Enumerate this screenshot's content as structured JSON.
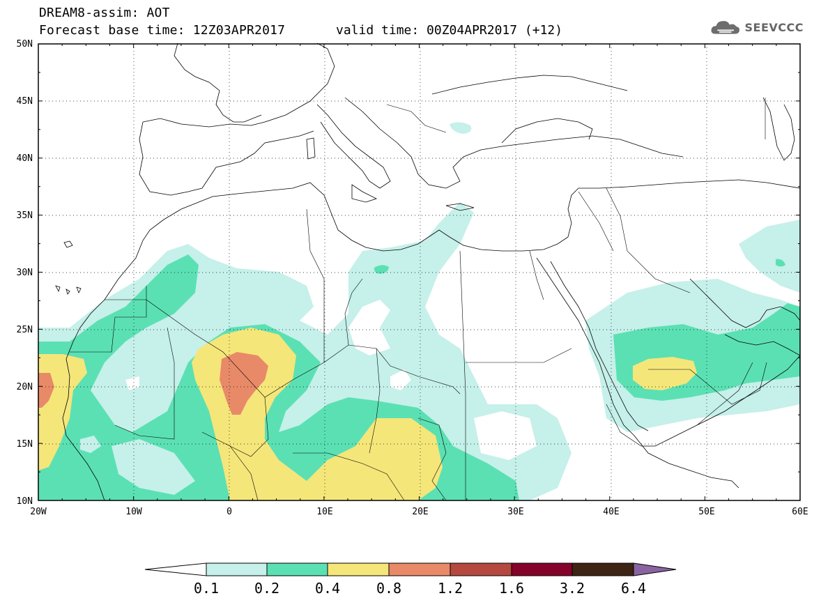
{
  "header": {
    "title_line1": "DREAM8-assim: AOT",
    "title_line2": "Forecast base time: 12Z03APR2017",
    "valid_time": "valid time: 00Z04APR2017 (+12)",
    "logo_text": "SEEVCCC",
    "logo_icon": "cloud-icon"
  },
  "map": {
    "projection": "lat-lon",
    "lon_range": [
      -20,
      60
    ],
    "lat_range": [
      10,
      50
    ],
    "lon_ticks": [
      "20W",
      "10W",
      "0",
      "10E",
      "20E",
      "30E",
      "40E",
      "50E",
      "60E"
    ],
    "lat_ticks": [
      "10N",
      "15N",
      "20N",
      "25N",
      "30N",
      "35N",
      "40N",
      "45N",
      "50N"
    ],
    "grid": "dotted"
  },
  "colorbar": {
    "labels": [
      "0.1",
      "0.2",
      "0.4",
      "0.8",
      "1.2",
      "1.6",
      "3.2",
      "6.4"
    ],
    "colors": [
      "#ffffff",
      "#c6f0ea",
      "#5be0b4",
      "#f5e67a",
      "#e88a68",
      "#b5493f",
      "#85022a",
      "#3d2414",
      "#8a64a0"
    ]
  }
}
